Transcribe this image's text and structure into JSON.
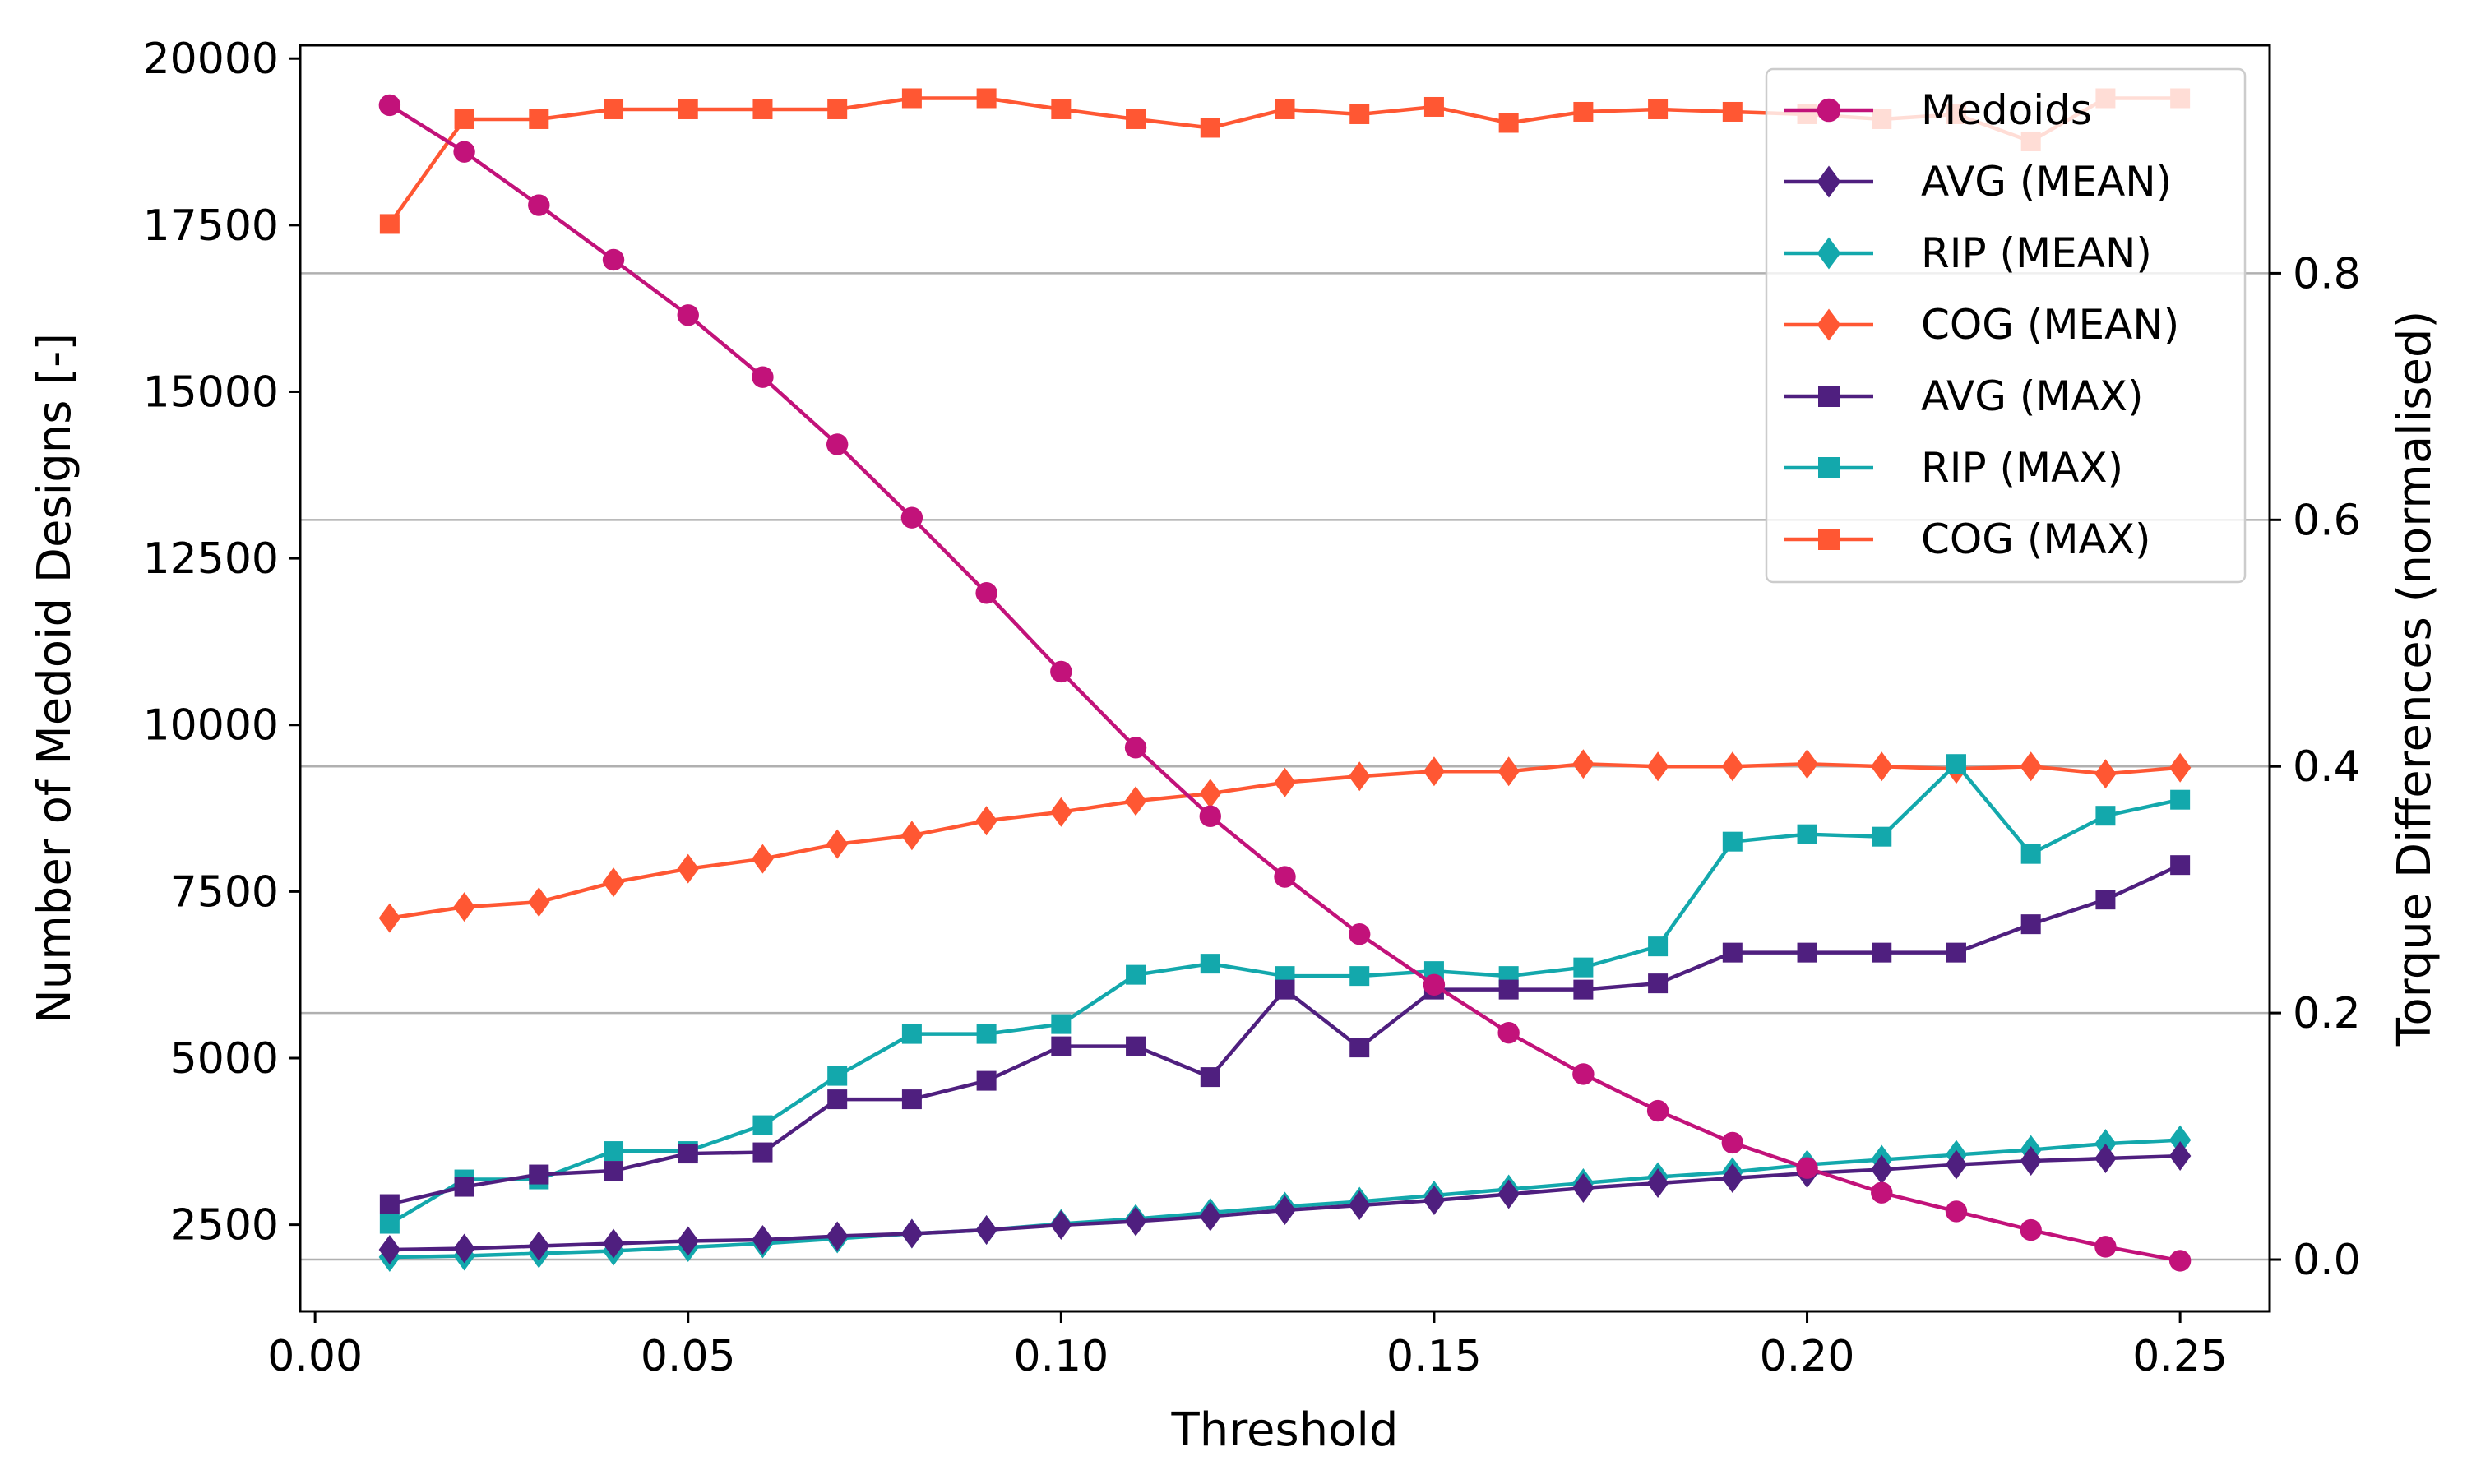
{
  "chart_data": {
    "type": "line",
    "xlabel": "Threshold",
    "ylabel_left": "Number of Medoid Designs [-]",
    "ylabel_right": "Torque Differences (normalised)",
    "xlim": [
      -0.002,
      0.262
    ],
    "ylim_left": [
      1200,
      20200
    ],
    "ylim_right": [
      -0.042,
      0.985
    ],
    "x_ticks": [
      0.0,
      0.05,
      0.1,
      0.15,
      0.2,
      0.25
    ],
    "x_tick_labels": [
      "0.00",
      "0.05",
      "0.10",
      "0.15",
      "0.20",
      "0.25"
    ],
    "y_left_ticks": [
      2500,
      5000,
      7500,
      10000,
      12500,
      15000,
      17500,
      20000
    ],
    "y_left_tick_labels": [
      "2500",
      "5000",
      "7500",
      "10000",
      "12500",
      "15000",
      "17500",
      "20000"
    ],
    "y_right_ticks": [
      0.0,
      0.2,
      0.4,
      0.6,
      0.8
    ],
    "y_right_tick_labels": [
      "0.0",
      "0.2",
      "0.4",
      "0.6",
      "0.8"
    ],
    "grid": "horizontal, right axis",
    "legend_position": "top-right",
    "x": [
      0.01,
      0.02,
      0.03,
      0.04,
      0.05,
      0.06,
      0.07,
      0.08,
      0.09,
      0.1,
      0.11,
      0.12,
      0.13,
      0.14,
      0.15,
      0.16,
      0.17,
      0.18,
      0.19,
      0.2,
      0.21,
      0.22,
      0.23,
      0.24,
      0.25
    ],
    "series": [
      {
        "name": "Medoids",
        "axis": "left",
        "marker": "circle",
        "color": "#c2127a",
        "values": [
          19300,
          18600,
          17800,
          16980,
          16150,
          15220,
          14210,
          13110,
          11980,
          10800,
          9660,
          8630,
          7720,
          6860,
          6100,
          5380,
          4760,
          4210,
          3730,
          3350,
          2980,
          2700,
          2420,
          2170,
          1960
        ]
      },
      {
        "name": "AVG (MEAN)",
        "axis": "right",
        "marker": "diamond",
        "color": "#4f1f7f",
        "values": [
          0.008,
          0.009,
          0.011,
          0.013,
          0.015,
          0.016,
          0.019,
          0.021,
          0.024,
          0.028,
          0.031,
          0.035,
          0.04,
          0.044,
          0.048,
          0.053,
          0.058,
          0.062,
          0.066,
          0.07,
          0.073,
          0.077,
          0.08,
          0.082,
          0.084
        ]
      },
      {
        "name": "RIP (MEAN)",
        "axis": "right",
        "marker": "diamond",
        "color": "#13a8ac",
        "values": [
          0.002,
          0.003,
          0.005,
          0.007,
          0.01,
          0.013,
          0.017,
          0.021,
          0.024,
          0.029,
          0.033,
          0.038,
          0.043,
          0.047,
          0.052,
          0.057,
          0.062,
          0.067,
          0.071,
          0.077,
          0.081,
          0.085,
          0.089,
          0.094,
          0.097
        ]
      },
      {
        "name": "COG (MEAN)",
        "axis": "right",
        "marker": "diamond",
        "color": "#ff5733",
        "values": [
          0.277,
          0.286,
          0.29,
          0.306,
          0.317,
          0.325,
          0.337,
          0.344,
          0.356,
          0.363,
          0.372,
          0.378,
          0.387,
          0.392,
          0.396,
          0.396,
          0.402,
          0.4,
          0.4,
          0.402,
          0.4,
          0.398,
          0.4,
          0.394,
          0.399
        ]
      },
      {
        "name": "AVG (MAX)",
        "axis": "right",
        "marker": "square",
        "color": "#4f1f7f",
        "values": [
          0.045,
          0.059,
          0.069,
          0.072,
          0.086,
          0.087,
          0.13,
          0.13,
          0.145,
          0.173,
          0.173,
          0.148,
          0.219,
          0.172,
          0.219,
          0.219,
          0.219,
          0.224,
          0.249,
          0.249,
          0.249,
          0.249,
          0.272,
          0.292,
          0.32
        ]
      },
      {
        "name": "RIP (MAX)",
        "axis": "right",
        "marker": "square",
        "color": "#13a8ac",
        "values": [
          0.029,
          0.065,
          0.065,
          0.088,
          0.088,
          0.109,
          0.149,
          0.183,
          0.183,
          0.191,
          0.231,
          0.24,
          0.23,
          0.23,
          0.234,
          0.23,
          0.237,
          0.254,
          0.339,
          0.345,
          0.343,
          0.402,
          0.329,
          0.36,
          0.373
        ]
      },
      {
        "name": "COG (MAX)",
        "axis": "right",
        "marker": "square",
        "color": "#ff5733",
        "values": [
          0.84,
          0.925,
          0.925,
          0.933,
          0.933,
          0.933,
          0.933,
          0.942,
          0.942,
          0.933,
          0.925,
          0.918,
          0.933,
          0.929,
          0.935,
          0.922,
          0.931,
          0.933,
          0.931,
          0.929,
          0.925,
          0.929,
          0.907,
          0.942,
          0.942
        ]
      }
    ]
  }
}
